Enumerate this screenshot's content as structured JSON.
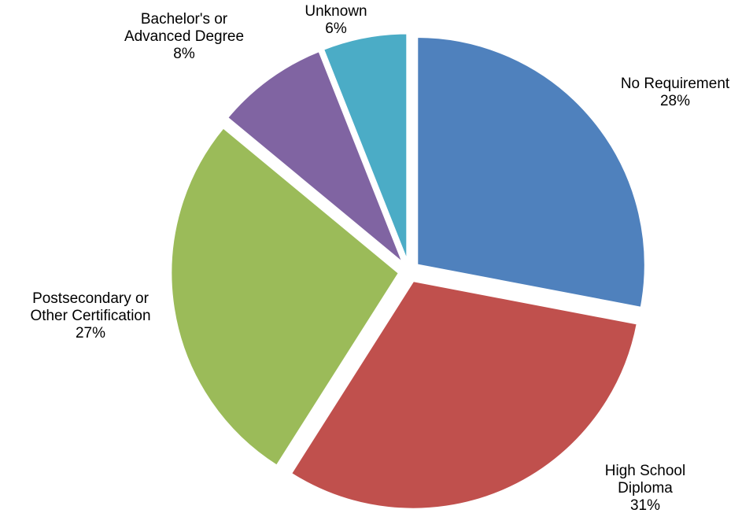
{
  "chart_data": {
    "type": "pie",
    "title": "",
    "start_angle_deg": 0,
    "direction": "clockwise",
    "exploded": true,
    "slices": [
      {
        "label_lines": [
          "No Requirement"
        ],
        "value": 28,
        "value_label": "28%",
        "color": "#4F81BD"
      },
      {
        "label_lines": [
          "High School",
          "Diploma"
        ],
        "value": 31,
        "value_label": "31%",
        "color": "#C0504D"
      },
      {
        "label_lines": [
          "Postsecondary or",
          "Other Certification"
        ],
        "value": 27,
        "value_label": "27%",
        "color": "#9BBB59"
      },
      {
        "label_lines": [
          "Bachelor's or",
          "Advanced Degree"
        ],
        "value": 8,
        "value_label": "8%",
        "color": "#8064A2"
      },
      {
        "label_lines": [
          "Unknown"
        ],
        "value": 6,
        "value_label": "6%",
        "color": "#4BACC6"
      }
    ]
  }
}
